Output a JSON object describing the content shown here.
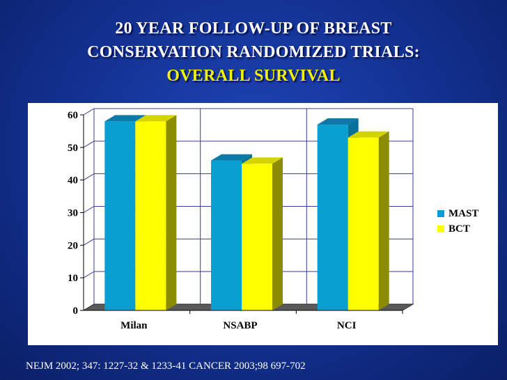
{
  "slide": {
    "title_line1": "20 YEAR FOLLOW-UP OF BREAST",
    "title_line2": "CONSERVATION RANDOMIZED TRIALS:",
    "title_line3": "OVERALL SURVIVAL",
    "citation": "NEJM  2002; 347: 1227-32 & 1233-41  CANCER 2003;98 697-702"
  },
  "colors": {
    "mast": "#0a9fd1",
    "mast_top": "#0b7aa8",
    "mast_side": "#077198",
    "bct": "#ffff00",
    "bct_top": "#d4d400",
    "bct_side": "#8c8c00",
    "grid": "#3a3a9c"
  },
  "chart_data": {
    "type": "bar",
    "title": "",
    "xlabel": "",
    "ylabel": "",
    "categories": [
      "Milan",
      "NSABP",
      "NCI"
    ],
    "series": [
      {
        "name": "MAST",
        "values": [
          58,
          46,
          57
        ]
      },
      {
        "name": "BCT",
        "values": [
          58,
          45,
          53
        ]
      }
    ],
    "ylim": [
      0,
      60
    ],
    "yticks": [
      "0",
      "10",
      "20",
      "30",
      "40",
      "50",
      "60"
    ],
    "grid": true,
    "legend": "right"
  }
}
